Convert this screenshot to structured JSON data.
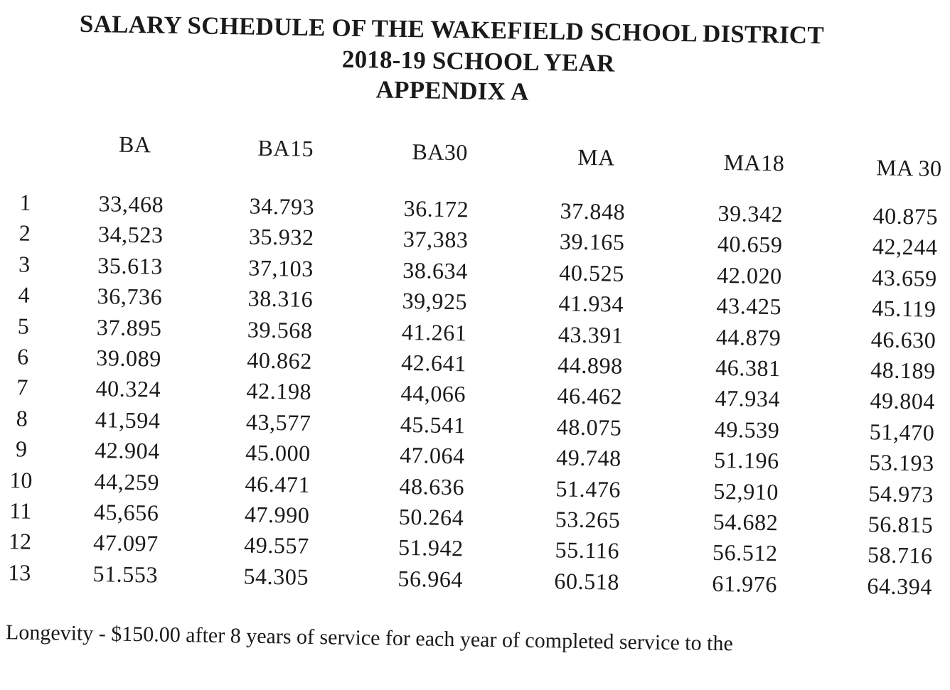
{
  "title": {
    "line1": "SALARY SCHEDULE OF THE WAKEFIELD SCHOOL DISTRICT",
    "line2": "2018-19 SCHOOL YEAR",
    "line3": "APPENDIX A"
  },
  "table": {
    "columns": [
      "BA",
      "BA15",
      "BA30",
      "MA",
      "MA18",
      "MA 30"
    ],
    "rows": [
      {
        "step": "1",
        "values": [
          "33,468",
          "34.793",
          "36.172",
          "37.848",
          "39.342",
          "40.875"
        ]
      },
      {
        "step": "2",
        "values": [
          "34,523",
          "35.932",
          "37,383",
          "39.165",
          "40.659",
          "42,244"
        ]
      },
      {
        "step": "3",
        "values": [
          "35.613",
          "37,103",
          "38.634",
          "40.525",
          "42.020",
          "43.659"
        ]
      },
      {
        "step": "4",
        "values": [
          "36,736",
          "38.316",
          "39,925",
          "41.934",
          "43.425",
          "45.119"
        ]
      },
      {
        "step": "5",
        "values": [
          "37.895",
          "39.568",
          "41.261",
          "43.391",
          "44.879",
          "46.630"
        ]
      },
      {
        "step": "6",
        "values": [
          "39.089",
          "40.862",
          "42.641",
          "44.898",
          "46.381",
          "48.189"
        ]
      },
      {
        "step": "7",
        "values": [
          "40.324",
          "42.198",
          "44,066",
          "46.462",
          "47.934",
          "49.804"
        ]
      },
      {
        "step": "8",
        "values": [
          "41,594",
          "43,577",
          "45.541",
          "48.075",
          "49.539",
          "51,470"
        ]
      },
      {
        "step": "9",
        "values": [
          "42.904",
          "45.000",
          "47.064",
          "49.748",
          "51.196",
          "53.193"
        ]
      },
      {
        "step": "10",
        "values": [
          "44,259",
          "46.471",
          "48.636",
          "51.476",
          "52,910",
          "54.973"
        ]
      },
      {
        "step": "11",
        "values": [
          "45,656",
          "47.990",
          "50.264",
          "53.265",
          "54.682",
          "56.815"
        ]
      },
      {
        "step": "12",
        "values": [
          "47.097",
          "49.557",
          "51.942",
          "55.116",
          "56.512",
          "58.716"
        ]
      },
      {
        "step": "13",
        "values": [
          "51.553",
          "54.305",
          "56.964",
          "60.518",
          "61.976",
          "64.394"
        ]
      }
    ]
  },
  "footnote": "Longevity - $150.00 after 8 years of service for each year of completed service to the"
}
